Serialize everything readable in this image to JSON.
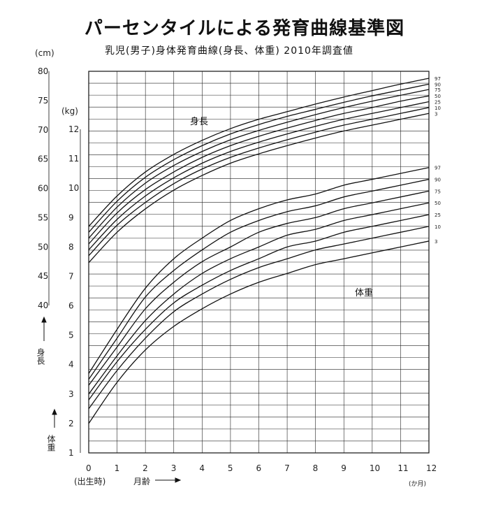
{
  "title": "パーセンタイルによる発育曲線基準図",
  "subtitle": "乳児(男子)身体発育曲線(身長、体重) 2010年調査値",
  "chart_data": {
    "type": "line",
    "x": [
      0,
      1,
      2,
      3,
      4,
      5,
      6,
      7,
      8,
      9,
      10,
      11,
      12
    ],
    "x_ticks": [
      "0",
      "1",
      "2",
      "3",
      "4",
      "5",
      "6",
      "7",
      "8",
      "9",
      "10",
      "11",
      "12"
    ],
    "x_label_birth": "(出生時)",
    "x_label": "月齢",
    "x_unit": "(か月)",
    "grid": true,
    "height": {
      "label": "身長",
      "axis_label": "身長",
      "unit": "(cm)",
      "ylim": [
        40,
        80
      ],
      "y_ticks": [
        40,
        45,
        50,
        55,
        60,
        65,
        70,
        75,
        80
      ],
      "percentiles": [
        "97",
        "90",
        "75",
        "50",
        "25",
        "10",
        "3"
      ],
      "series": [
        {
          "name": "97",
          "values": [
            53.5,
            58.7,
            62.8,
            65.8,
            68.2,
            70.2,
            71.8,
            73.1,
            74.4,
            75.6,
            76.7,
            77.8,
            78.8
          ]
        },
        {
          "name": "90",
          "values": [
            52.5,
            57.8,
            61.9,
            64.9,
            67.3,
            69.3,
            70.9,
            72.3,
            73.5,
            74.7,
            75.8,
            76.8,
            77.8
          ]
        },
        {
          "name": "75",
          "values": [
            51.5,
            56.8,
            60.9,
            63.9,
            66.3,
            68.3,
            69.9,
            71.3,
            72.6,
            73.8,
            74.9,
            75.9,
            76.9
          ]
        },
        {
          "name": "50",
          "values": [
            50.5,
            55.8,
            59.8,
            62.8,
            65.3,
            67.3,
            68.9,
            70.3,
            71.6,
            72.8,
            73.8,
            74.9,
            75.8
          ]
        },
        {
          "name": "25",
          "values": [
            49.5,
            54.7,
            58.7,
            61.8,
            64.3,
            66.3,
            67.9,
            69.3,
            70.6,
            71.8,
            72.8,
            73.8,
            74.8
          ]
        },
        {
          "name": "10",
          "values": [
            48.5,
            53.7,
            57.6,
            60.8,
            63.3,
            65.3,
            66.9,
            68.3,
            69.6,
            70.8,
            71.8,
            72.8,
            73.8
          ]
        },
        {
          "name": "3",
          "values": [
            47.3,
            52.5,
            56.5,
            59.7,
            62.2,
            64.3,
            65.9,
            67.3,
            68.6,
            69.8,
            70.8,
            71.8,
            72.8
          ]
        }
      ]
    },
    "weight": {
      "label": "体重",
      "axis_label": "体重",
      "unit": "(kg)",
      "ylim": [
        1,
        12
      ],
      "y_ticks": [
        1,
        2,
        3,
        4,
        5,
        6,
        7,
        8,
        9,
        10,
        11,
        12
      ],
      "percentiles": [
        "97",
        "90",
        "75",
        "50",
        "25",
        "10",
        "3"
      ],
      "series": [
        {
          "name": "97",
          "values": [
            3.7,
            5.2,
            6.6,
            7.6,
            8.3,
            8.9,
            9.3,
            9.6,
            9.8,
            10.1,
            10.3,
            10.5,
            10.7
          ]
        },
        {
          "name": "90",
          "values": [
            3.5,
            4.9,
            6.3,
            7.2,
            7.9,
            8.5,
            8.9,
            9.2,
            9.4,
            9.7,
            9.9,
            10.1,
            10.3
          ]
        },
        {
          "name": "75",
          "values": [
            3.3,
            4.6,
            5.9,
            6.8,
            7.5,
            8.0,
            8.5,
            8.8,
            9.0,
            9.3,
            9.5,
            9.7,
            9.9
          ]
        },
        {
          "name": "50",
          "values": [
            3.0,
            4.3,
            5.5,
            6.4,
            7.1,
            7.6,
            8.0,
            8.4,
            8.6,
            8.9,
            9.1,
            9.3,
            9.5
          ]
        },
        {
          "name": "25",
          "values": [
            2.8,
            4.1,
            5.2,
            6.1,
            6.7,
            7.2,
            7.6,
            8.0,
            8.2,
            8.5,
            8.7,
            8.9,
            9.1
          ]
        },
        {
          "name": "10",
          "values": [
            2.5,
            3.8,
            4.9,
            5.8,
            6.4,
            6.9,
            7.3,
            7.6,
            7.9,
            8.1,
            8.3,
            8.5,
            8.7
          ]
        },
        {
          "name": "3",
          "values": [
            2.0,
            3.4,
            4.5,
            5.3,
            5.9,
            6.4,
            6.8,
            7.1,
            7.4,
            7.6,
            7.8,
            8.0,
            8.2
          ]
        }
      ]
    }
  }
}
